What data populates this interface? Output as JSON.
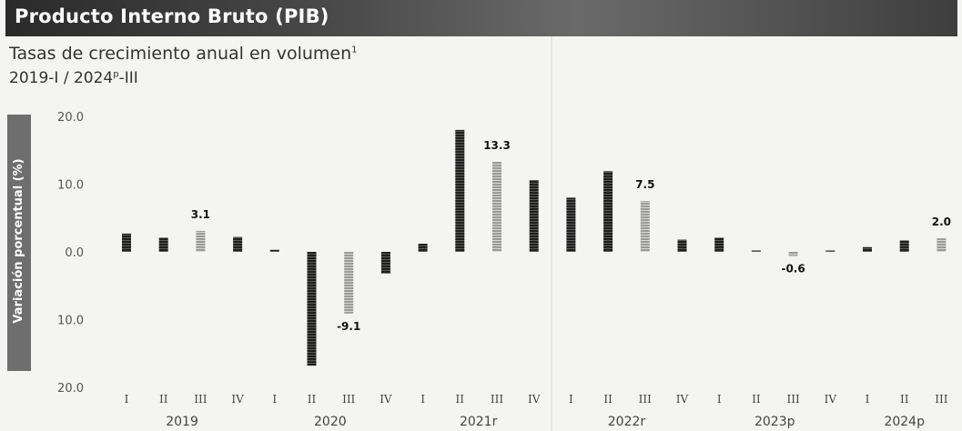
{
  "header": {
    "title": "Producto Interno Bruto (PIB)",
    "subtitle": "Tasas de crecimiento anual en volumen",
    "subtitle_sup": "1",
    "period": "2019-I / 2024",
    "period_sup": "p",
    "period_end": "-III"
  },
  "colors": {
    "dark_bar": "#1f1f1f",
    "highlight_bar": "#9a9a9a",
    "title_bg": "#3a3a3a"
  },
  "chart_data": {
    "type": "bar",
    "ylabel": "Variación porcentual (%)",
    "ylim": [
      -20,
      20
    ],
    "yticks": [
      20,
      10,
      0,
      -10,
      -20
    ],
    "ytick_labels": [
      "20.0",
      "10.0",
      "0.0",
      "10.0",
      "20.0"
    ],
    "categories": [
      "I",
      "II",
      "III",
      "IV",
      "I",
      "II",
      "III",
      "IV",
      "I",
      "II",
      "III",
      "IV",
      "I",
      "II",
      "III",
      "IV",
      "I",
      "II",
      "III",
      "IV",
      "I",
      "II",
      "III"
    ],
    "years": [
      {
        "label": "2019",
        "start": 0,
        "count": 4
      },
      {
        "label": "2020",
        "start": 4,
        "count": 4
      },
      {
        "label": "2021r",
        "start": 8,
        "count": 4
      },
      {
        "label": "2022r",
        "start": 12,
        "count": 4
      },
      {
        "label": "2023p",
        "start": 16,
        "count": 4
      },
      {
        "label": "2024p",
        "start": 20,
        "count": 3
      }
    ],
    "values": [
      2.7,
      2.1,
      3.1,
      2.2,
      0.3,
      -16.8,
      -9.1,
      -3.2,
      1.2,
      18.0,
      13.3,
      10.6,
      8.0,
      11.9,
      7.5,
      1.8,
      2.1,
      0.2,
      -0.6,
      0.2,
      0.7,
      1.7,
      2.0
    ],
    "highlighted": [
      2,
      6,
      10,
      14,
      18,
      22
    ],
    "data_labels": [
      {
        "index": 2,
        "text": "3.1"
      },
      {
        "index": 6,
        "text": "-9.1"
      },
      {
        "index": 10,
        "text": "13.3"
      },
      {
        "index": 14,
        "text": "7.5"
      },
      {
        "index": 18,
        "text": "-0.6"
      },
      {
        "index": 22,
        "text": "2.0"
      }
    ],
    "grid": false,
    "legend": "none"
  }
}
